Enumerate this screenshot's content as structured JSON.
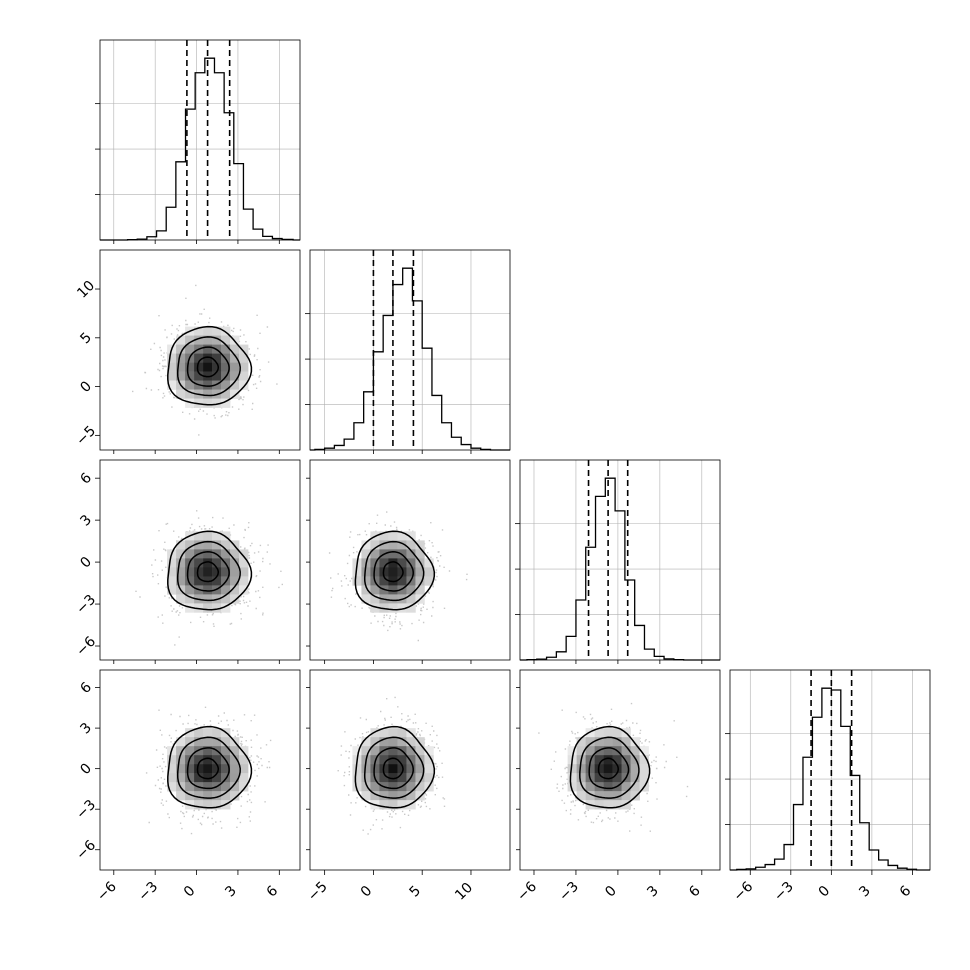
{
  "chart_data": {
    "type": "corner",
    "title": "",
    "n_parameters": 4,
    "parameters": [
      {
        "index": 0,
        "xlim": [
          -7,
          7.5
        ],
        "ticks": [
          -6,
          -3,
          0,
          3,
          6
        ],
        "tick_labels": [
          "−6",
          "−3",
          "0",
          "3",
          "6"
        ],
        "quantiles": [
          -0.7,
          0.8,
          2.4
        ],
        "mean": 0.8,
        "sd": 1.5
      },
      {
        "index": 1,
        "xlim": [
          -6.5,
          14
        ],
        "ticks": [
          -5,
          0,
          5,
          10
        ],
        "tick_labels": [
          "−5",
          "0",
          "5",
          "10"
        ],
        "quantiles": [
          0.0,
          2.0,
          4.1
        ],
        "mean": 2.0,
        "sd": 2.0
      },
      {
        "index": 2,
        "xlim": [
          -7,
          7.3
        ],
        "ticks": [
          -6,
          -3,
          0,
          3,
          6
        ],
        "tick_labels": [
          "−6",
          "−3",
          "0",
          "3",
          "6"
        ],
        "quantiles": [
          -2.1,
          -0.7,
          0.7
        ],
        "mean": -0.7,
        "sd": 1.4
      },
      {
        "index": 3,
        "xlim": [
          -7.5,
          7.3
        ],
        "ticks": [
          -6,
          -3,
          0,
          3,
          6
        ],
        "tick_labels": [
          "−6",
          "−3",
          "0",
          "3",
          "6"
        ],
        "quantiles": [
          -1.5,
          0.0,
          1.5
        ],
        "mean": 0.0,
        "sd": 1.5
      }
    ],
    "histograms": [
      {
        "param": 0,
        "bins": [
          -5,
          -4.3,
          -3.6,
          -2.9,
          -2.2,
          -1.5,
          -0.8,
          -0.1,
          0.6,
          1.3,
          2.0,
          2.7,
          3.4,
          4.1,
          4.8,
          5.5,
          6.2,
          7.0
        ],
        "counts": [
          2,
          5,
          18,
          50,
          180,
          430,
          720,
          920,
          1000,
          920,
          700,
          420,
          170,
          60,
          20,
          8,
          3
        ]
      },
      {
        "param": 1,
        "bins": [
          -6,
          -5,
          -4,
          -3,
          -2,
          -1,
          0,
          1,
          2,
          3,
          4,
          5,
          6,
          7,
          8,
          9,
          10,
          11,
          12
        ],
        "counts": [
          3,
          10,
          25,
          60,
          150,
          320,
          540,
          740,
          910,
          1000,
          820,
          560,
          300,
          150,
          70,
          30,
          10,
          3
        ]
      },
      {
        "param": 2,
        "bins": [
          -6.5,
          -5.8,
          -5.1,
          -4.4,
          -3.7,
          -3.0,
          -2.3,
          -1.6,
          -0.9,
          -0.2,
          0.5,
          1.2,
          1.9,
          2.6,
          3.3,
          4.0,
          4.7
        ],
        "counts": [
          2,
          5,
          15,
          45,
          130,
          330,
          620,
          900,
          1000,
          820,
          440,
          190,
          60,
          20,
          6,
          2
        ]
      },
      {
        "param": 3,
        "bins": [
          -7,
          -6.3,
          -5.6,
          -4.9,
          -4.2,
          -3.5,
          -2.8,
          -2.1,
          -1.4,
          -0.7,
          0.0,
          0.7,
          1.4,
          2.1,
          2.8,
          3.5,
          4.2,
          4.9,
          5.6,
          6.3
        ],
        "counts": [
          3,
          6,
          15,
          30,
          60,
          140,
          360,
          620,
          840,
          1000,
          990,
          790,
          520,
          260,
          110,
          55,
          25,
          10,
          4
        ]
      }
    ],
    "pairs": [
      {
        "x": 0,
        "y": 1,
        "center": [
          0.8,
          2.0
        ],
        "spread": [
          1.5,
          2.0
        ]
      },
      {
        "x": 0,
        "y": 2,
        "center": [
          0.8,
          -0.7
        ],
        "spread": [
          1.5,
          1.4
        ]
      },
      {
        "x": 1,
        "y": 2,
        "center": [
          2.0,
          -0.7
        ],
        "spread": [
          2.0,
          1.4
        ]
      },
      {
        "x": 0,
        "y": 3,
        "center": [
          0.8,
          0.0
        ],
        "spread": [
          1.5,
          1.5
        ]
      },
      {
        "x": 1,
        "y": 3,
        "center": [
          2.0,
          0.0
        ],
        "spread": [
          2.0,
          1.5
        ]
      },
      {
        "x": 2,
        "y": 3,
        "center": [
          -0.7,
          0.0
        ],
        "spread": [
          1.4,
          1.5
        ]
      }
    ],
    "contour_sigma_levels": [
      0.5,
      1.0,
      1.5,
      2.0
    ],
    "grid": true,
    "colors": {
      "line": "#000000",
      "grid": "#b0b0b0",
      "scatter": "#9a9a9a",
      "density": "#000000"
    }
  }
}
